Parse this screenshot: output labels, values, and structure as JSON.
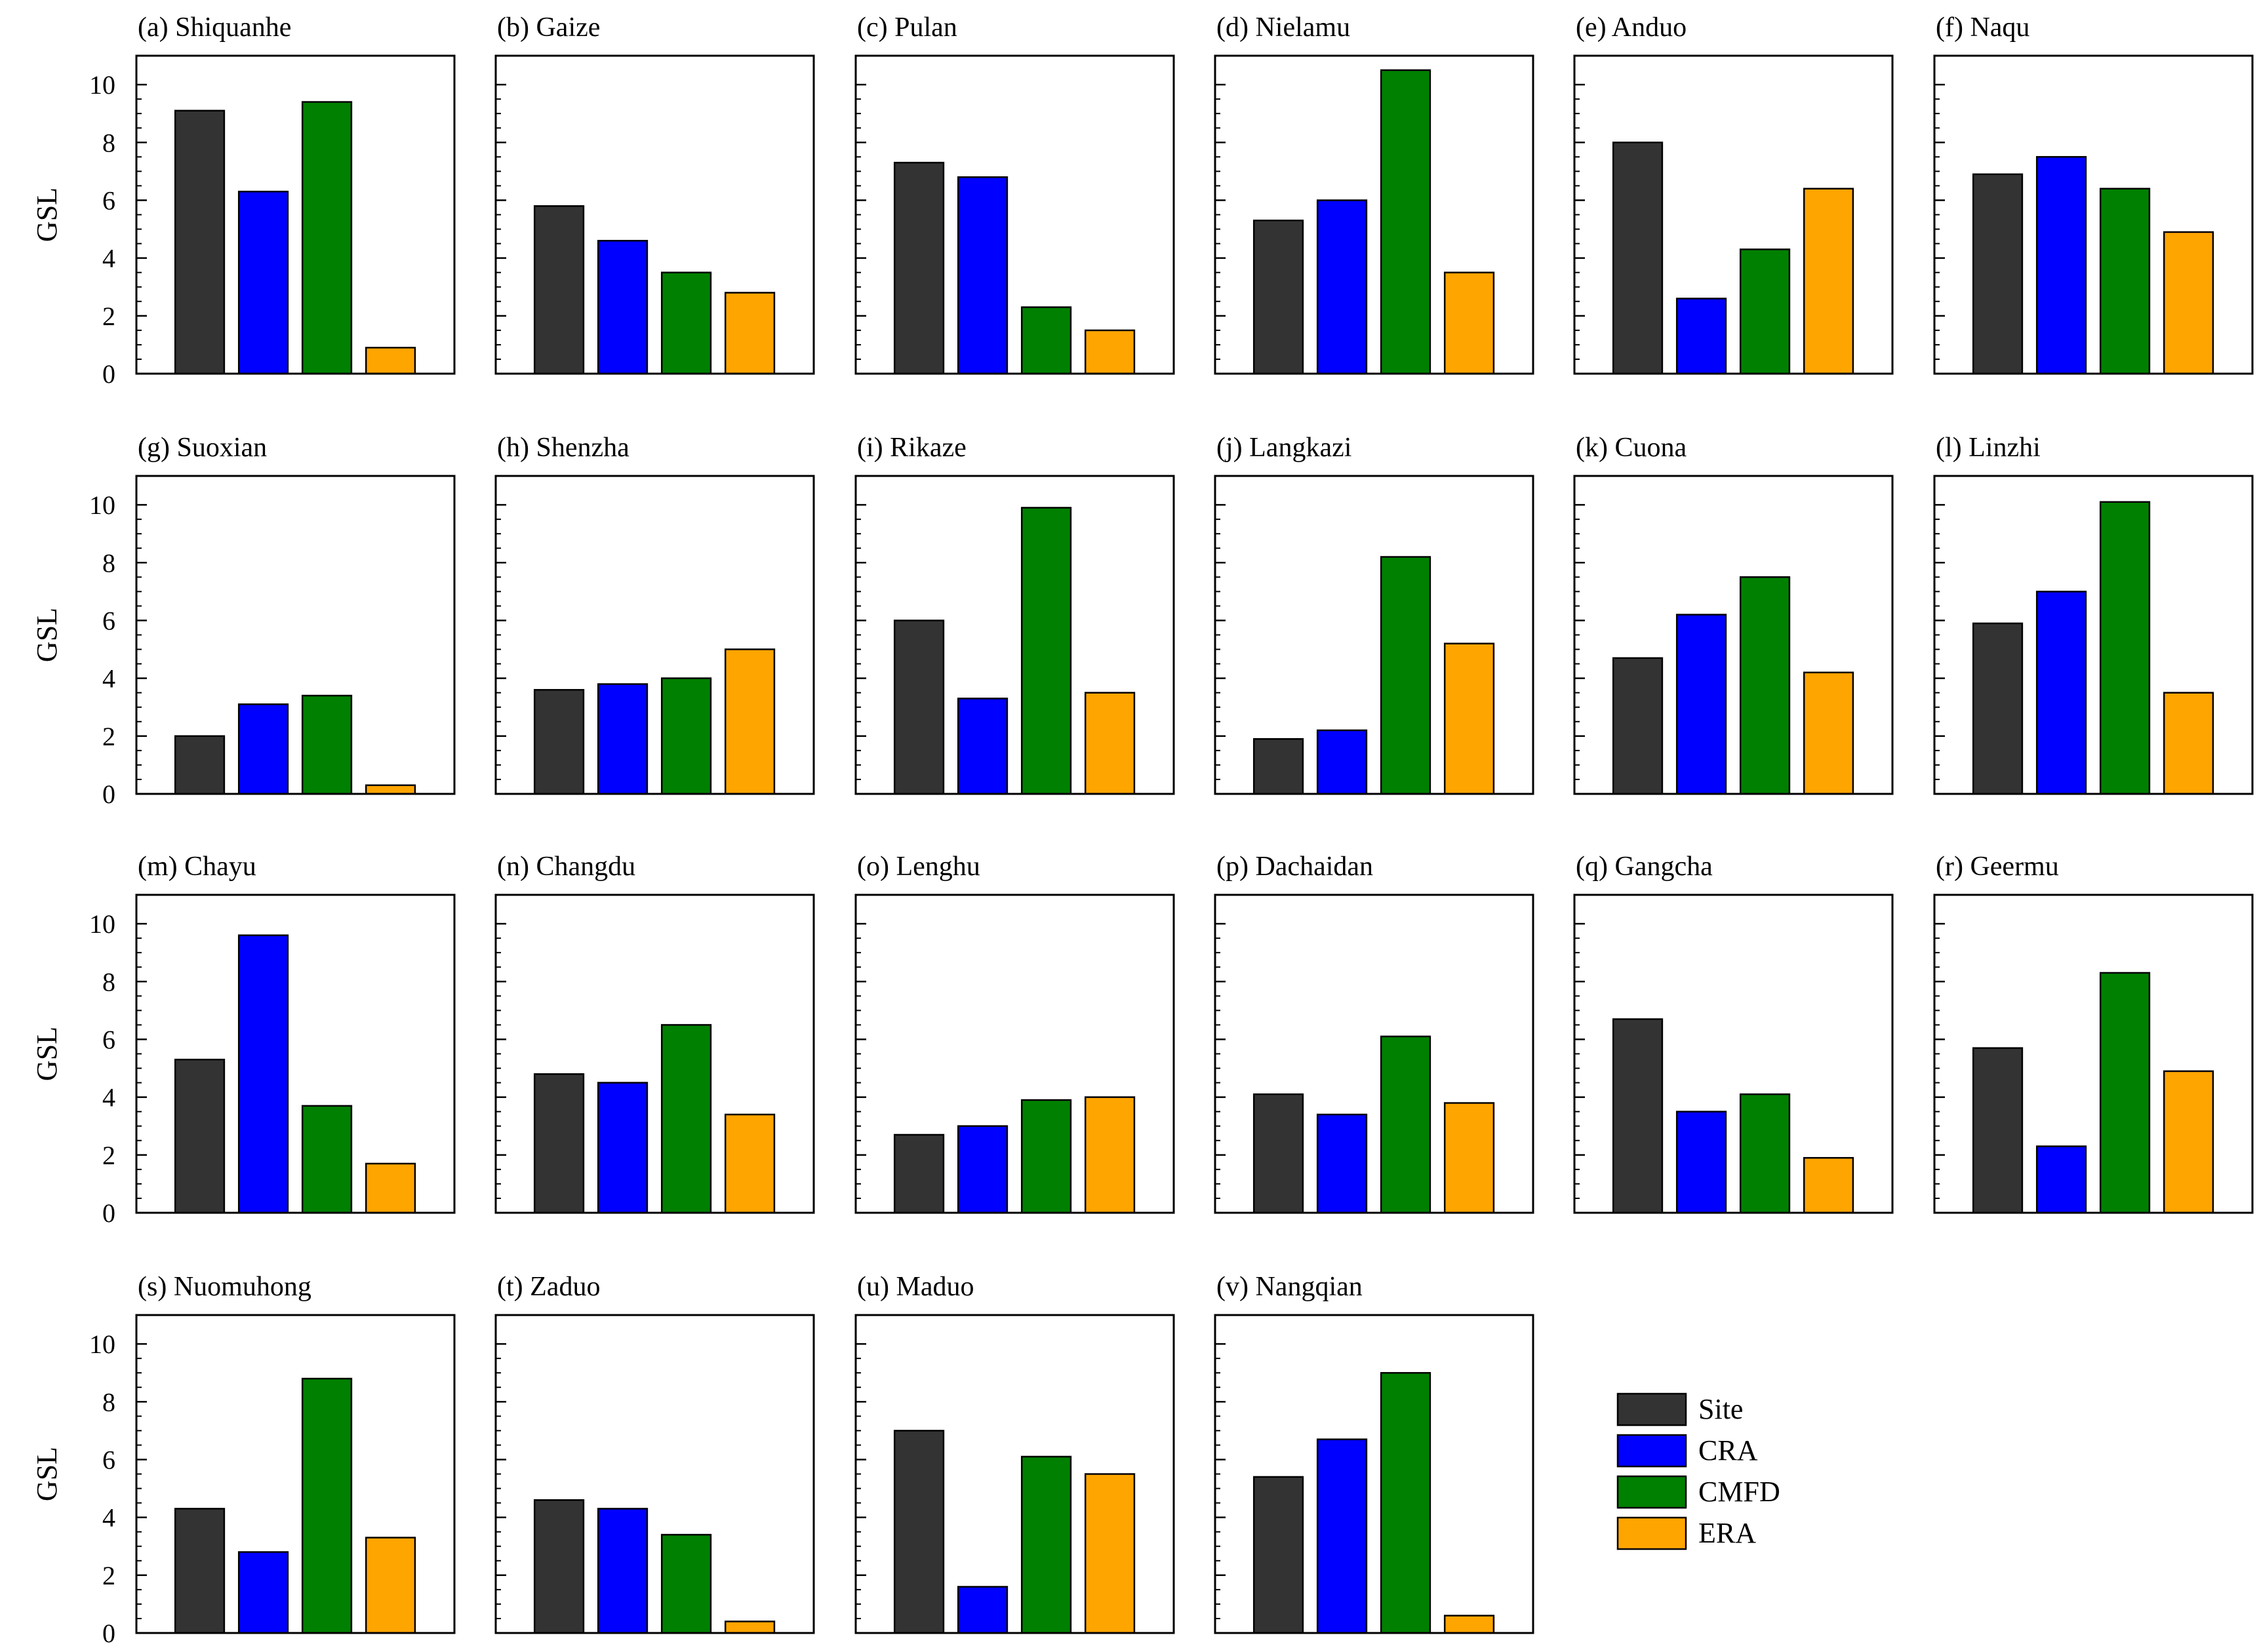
{
  "chart_data": {
    "type": "bar",
    "ylabel": "GSL",
    "ylim": [
      0,
      11
    ],
    "yticks": [
      0,
      2,
      4,
      6,
      8,
      10
    ],
    "grid": false,
    "legend_position": "bottom-right",
    "series": [
      {
        "name": "Site",
        "color": "#333333"
      },
      {
        "name": "CRA",
        "color": "#0000ff"
      },
      {
        "name": "CMFD",
        "color": "#008000"
      },
      {
        "name": "ERA",
        "color": "#ffa500"
      }
    ],
    "panels": [
      {
        "title": "(a) Shiquanhe",
        "values": [
          9.1,
          6.3,
          9.4,
          0.9
        ]
      },
      {
        "title": "(b) Gaize",
        "values": [
          5.8,
          4.6,
          3.5,
          2.8
        ]
      },
      {
        "title": "(c) Pulan",
        "values": [
          7.3,
          6.8,
          2.3,
          1.5
        ]
      },
      {
        "title": "(d) Nielamu",
        "values": [
          5.3,
          6.0,
          10.5,
          3.5
        ]
      },
      {
        "title": "(e) Anduo",
        "values": [
          8.0,
          2.6,
          4.3,
          6.4
        ]
      },
      {
        "title": "(f) Naqu",
        "values": [
          6.9,
          7.5,
          6.4,
          4.9
        ]
      },
      {
        "title": "(g) Suoxian",
        "values": [
          2.0,
          3.1,
          3.4,
          0.3
        ]
      },
      {
        "title": "(h) Shenzha",
        "values": [
          3.6,
          3.8,
          4.0,
          5.0
        ]
      },
      {
        "title": "(i) Rikaze",
        "values": [
          6.0,
          3.3,
          9.9,
          3.5
        ]
      },
      {
        "title": "(j) Langkazi",
        "values": [
          1.9,
          2.2,
          8.2,
          5.2
        ]
      },
      {
        "title": "(k) Cuona",
        "values": [
          4.7,
          6.2,
          7.5,
          4.2
        ]
      },
      {
        "title": "(l) Linzhi",
        "values": [
          5.9,
          7.0,
          10.1,
          3.5
        ]
      },
      {
        "title": "(m) Chayu",
        "values": [
          5.3,
          9.6,
          3.7,
          1.7
        ]
      },
      {
        "title": "(n) Changdu",
        "values": [
          4.8,
          4.5,
          6.5,
          3.4
        ]
      },
      {
        "title": "(o) Lenghu",
        "values": [
          2.7,
          3.0,
          3.9,
          4.0
        ]
      },
      {
        "title": "(p) Dachaidan",
        "values": [
          4.1,
          3.4,
          6.1,
          3.8
        ]
      },
      {
        "title": "(q) Gangcha",
        "values": [
          6.7,
          3.5,
          4.1,
          1.9
        ]
      },
      {
        "title": "(r) Geermu",
        "values": [
          5.7,
          2.3,
          8.3,
          4.9
        ]
      },
      {
        "title": "(s) Nuomuhong",
        "values": [
          4.3,
          2.8,
          8.8,
          3.3
        ]
      },
      {
        "title": "(t) Zaduo",
        "values": [
          4.6,
          4.3,
          3.4,
          0.4
        ]
      },
      {
        "title": "(u) Maduo",
        "values": [
          7.0,
          1.6,
          6.1,
          5.5
        ]
      },
      {
        "title": "(v) Nangqian",
        "values": [
          5.4,
          6.7,
          9.0,
          0.6
        ]
      }
    ]
  }
}
